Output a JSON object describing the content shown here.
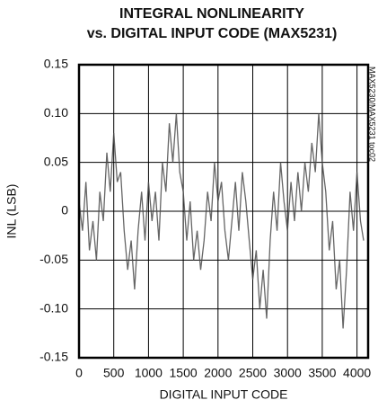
{
  "chart_data": {
    "type": "line",
    "title": [
      "INTEGRAL NONLINEARITY",
      "vs. DIGITAL INPUT CODE (MAX5231)"
    ],
    "xlabel": "DIGITAL INPUT CODE",
    "ylabel": "INL (LSB)",
    "annotation": "MAX5230/MAX5231 toc02",
    "x": [
      0,
      50,
      100,
      150,
      200,
      250,
      300,
      350,
      400,
      450,
      500,
      550,
      600,
      650,
      700,
      750,
      800,
      850,
      900,
      950,
      1000,
      1050,
      1100,
      1150,
      1200,
      1250,
      1300,
      1350,
      1400,
      1450,
      1500,
      1550,
      1600,
      1650,
      1700,
      1750,
      1800,
      1850,
      1900,
      1950,
      2000,
      2050,
      2100,
      2150,
      2200,
      2250,
      2300,
      2350,
      2400,
      2450,
      2500,
      2550,
      2600,
      2650,
      2700,
      2750,
      2800,
      2850,
      2900,
      2950,
      3000,
      3050,
      3100,
      3150,
      3200,
      3250,
      3300,
      3350,
      3400,
      3450,
      3500,
      3550,
      3600,
      3650,
      3700,
      3750,
      3800,
      3850,
      3900,
      3950,
      4000,
      4050,
      4095
    ],
    "series": [
      {
        "name": "INL",
        "color": "#4a4a4a",
        "values": [
          0.01,
          -0.02,
          0.03,
          -0.04,
          -0.01,
          -0.05,
          0.02,
          -0.01,
          0.06,
          0.02,
          0.08,
          0.03,
          0.04,
          -0.02,
          -0.06,
          -0.03,
          -0.08,
          -0.02,
          0.02,
          -0.03,
          0.03,
          -0.01,
          0.02,
          -0.03,
          0.05,
          0.02,
          0.09,
          0.05,
          0.1,
          0.04,
          0.02,
          -0.03,
          0.01,
          -0.05,
          -0.02,
          -0.06,
          -0.03,
          0.02,
          -0.01,
          0.05,
          0.01,
          0.03,
          -0.02,
          -0.05,
          -0.01,
          0.03,
          -0.02,
          0.04,
          0.01,
          -0.03,
          -0.07,
          -0.04,
          -0.1,
          -0.06,
          -0.11,
          -0.03,
          0.02,
          -0.02,
          0.05,
          0.01,
          -0.02,
          0.03,
          -0.01,
          0.04,
          0.0,
          0.05,
          0.02,
          0.07,
          0.04,
          0.1,
          0.05,
          0.02,
          -0.04,
          -0.01,
          -0.08,
          -0.05,
          -0.12,
          -0.06,
          0.02,
          -0.02,
          0.04,
          -0.01,
          -0.03
        ]
      }
    ],
    "xlim": [
      0,
      4160
    ],
    "xticks": [
      0,
      500,
      1000,
      1500,
      2000,
      2500,
      3000,
      3500,
      4000
    ],
    "ylim": [
      -0.15,
      0.15
    ],
    "yticks": [
      0.15,
      {
        "value": 0.1,
        "label": "0.10"
      },
      0.05,
      0,
      -0.05,
      {
        "value": -0.1,
        "label": "-0.10"
      },
      -0.15
    ],
    "grid": true
  }
}
